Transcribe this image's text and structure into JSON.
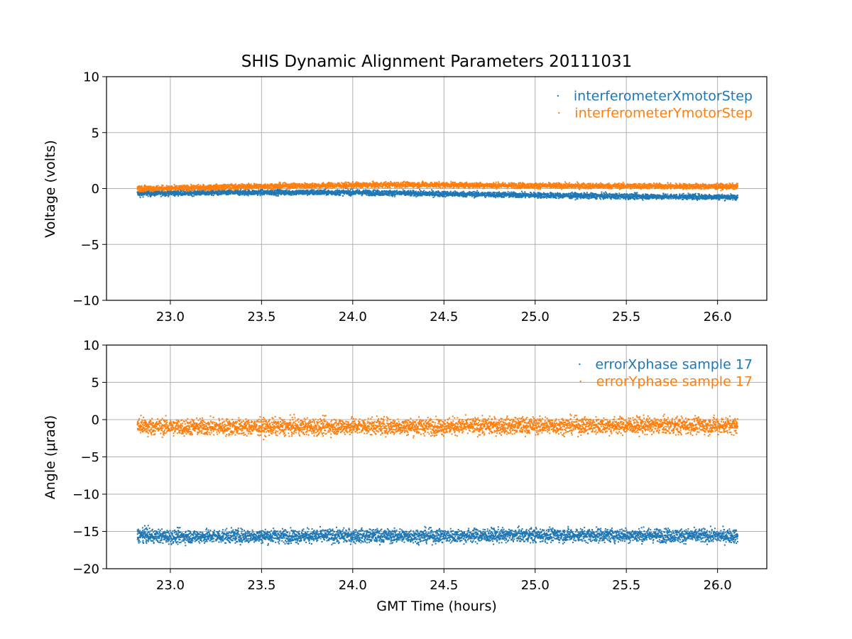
{
  "chart_data": [
    {
      "type": "scatter",
      "title": "SHIS Dynamic Alignment Parameters 20111031",
      "xlabel": "",
      "ylabel": "Voltage (volts)",
      "xlim": [
        22.65,
        26.27
      ],
      "ylim": [
        -10,
        10
      ],
      "xticks": [
        23.0,
        23.5,
        24.0,
        24.5,
        25.0,
        25.5,
        26.0
      ],
      "xtick_labels": [
        "23.0",
        "23.5",
        "24.0",
        "24.5",
        "25.0",
        "25.5",
        "26.0"
      ],
      "yticks": [
        10,
        5,
        0,
        -5,
        -10
      ],
      "ytick_labels": [
        "10",
        "5",
        "0",
        "−5",
        "−10"
      ],
      "grid": true,
      "legend_position": "top-right",
      "series": [
        {
          "name": "interferometerXmotorStep",
          "color": "#1f77b4",
          "x_range": [
            22.82,
            26.11
          ],
          "spread": 0.12,
          "x": [
            22.82,
            23.0,
            23.5,
            24.0,
            24.5,
            25.0,
            25.5,
            26.0,
            26.11
          ],
          "y": [
            -0.45,
            -0.4,
            -0.35,
            -0.35,
            -0.48,
            -0.6,
            -0.7,
            -0.75,
            -0.78
          ]
        },
        {
          "name": "interferometerYmotorStep",
          "color": "#ff7f0e",
          "x_range": [
            22.82,
            26.11
          ],
          "spread": 0.12,
          "x": [
            22.82,
            23.0,
            23.5,
            24.0,
            24.3,
            24.5,
            25.0,
            25.5,
            26.0,
            26.11
          ],
          "y": [
            0.0,
            0.02,
            0.2,
            0.3,
            0.35,
            0.33,
            0.25,
            0.22,
            0.18,
            0.18
          ]
        }
      ]
    },
    {
      "type": "scatter",
      "title": "",
      "xlabel": "GMT Time (hours)",
      "ylabel": "Angle (μrad)",
      "xlim": [
        22.65,
        26.27
      ],
      "ylim": [
        -20,
        10
      ],
      "xticks": [
        23.0,
        23.5,
        24.0,
        24.5,
        25.0,
        25.5,
        26.0
      ],
      "xtick_labels": [
        "23.0",
        "23.5",
        "24.0",
        "24.5",
        "25.0",
        "25.5",
        "26.0"
      ],
      "yticks": [
        10,
        5,
        0,
        -5,
        -10,
        -15,
        -20
      ],
      "ytick_labels": [
        "10",
        "5",
        "0",
        "−5",
        "−10",
        "−15",
        "−20"
      ],
      "grid": true,
      "legend_position": "top-right",
      "series": [
        {
          "name": "errorXphase sample 17",
          "color": "#1f77b4",
          "x_range": [
            22.82,
            26.11
          ],
          "spread": 0.45,
          "x": [
            22.82,
            23.0,
            23.5,
            24.0,
            24.5,
            25.0,
            25.5,
            26.0,
            26.11
          ],
          "y": [
            -15.5,
            -15.7,
            -15.6,
            -15.6,
            -15.6,
            -15.5,
            -15.5,
            -15.6,
            -15.6
          ]
        },
        {
          "name": "errorYphase sample 17",
          "color": "#ff7f0e",
          "x_range": [
            22.82,
            26.11
          ],
          "spread": 0.55,
          "x": [
            22.82,
            23.0,
            23.5,
            24.0,
            24.5,
            25.0,
            25.5,
            26.0,
            26.11
          ],
          "y": [
            -0.9,
            -1.0,
            -1.0,
            -0.9,
            -0.9,
            -0.8,
            -0.8,
            -0.8,
            -0.8
          ]
        }
      ]
    }
  ]
}
